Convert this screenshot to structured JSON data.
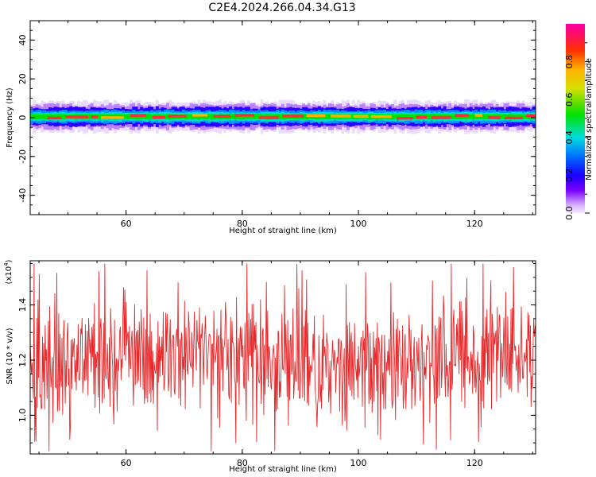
{
  "title": "C2E4.2024.266.04.34.G13",
  "chart_data": [
    {
      "type": "heatmap",
      "xlabel": "Height of straight line (km)",
      "ylabel": "Frequency (Hz)",
      "xlim": [
        43.5,
        130.5
      ],
      "ylim": [
        -50,
        50
      ],
      "xticks": [
        "60",
        "80",
        "100",
        "120"
      ],
      "yticks": [
        "40",
        "20",
        "0",
        "-20",
        "-40"
      ],
      "colorbar": {
        "label": "Normalized spectral amplitude",
        "range": [
          0,
          1
        ],
        "ticks": [
          "0.0",
          "0.2",
          "0.4",
          "0.6",
          "0.8"
        ]
      },
      "description_values": {
        "center_frequency": 0.5,
        "band_halfwidth": 4
      }
    },
    {
      "type": "line",
      "xlabel": "Height of straight line (km)",
      "ylabel": "SNR (10 * v/v)",
      "scale_label": "(x10^4)",
      "scale_base": "(x10",
      "scale_exp": "4",
      "xlim": [
        43.5,
        130.5
      ],
      "ylim": [
        0.86,
        1.56
      ],
      "xticks": [
        "60",
        "80",
        "100",
        "120"
      ],
      "yticks": [
        "1.4",
        "1.2",
        "1.0"
      ],
      "series": [
        {
          "color": "#e8282a",
          "x_range": [
            43.5,
            130.5
          ],
          "mean": 1.2,
          "min": 0.87,
          "max": 1.55,
          "n_points": 780
        }
      ]
    }
  ]
}
